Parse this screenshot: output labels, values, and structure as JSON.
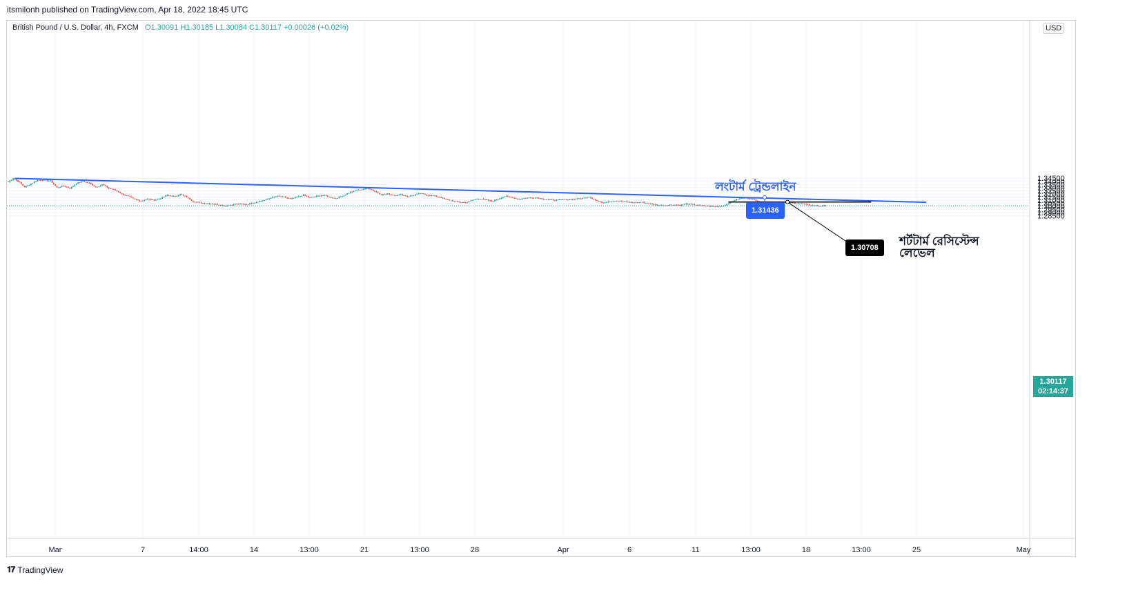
{
  "header": {
    "published": "itsmilonh published on TradingView.com, Apr 18, 2022 18:45 UTC"
  },
  "legend": {
    "symbol": "British Pound / U.S. Dollar, 4h, FXCM",
    "ohlc": "O1.30091  H1.30185  L1.30084  C1.30117  +0.00026 (+0.02%)"
  },
  "currency": "USD",
  "last_price": {
    "value": "1.30117",
    "countdown": "02:14:37",
    "color": "#26a69a"
  },
  "annotations": {
    "trendline_label": "লংটার্ম ট্রেন্ডলাইন",
    "trendline_touch_value": "1.31436",
    "resistance_value": "1.30708",
    "resistance_label": "শর্টটার্ম রেসিস্টেন্স লেভেল",
    "trendline_color": "#2962ff",
    "resistance_color": "#000000"
  },
  "footer": {
    "logo_icon": "tradingview-logo-icon",
    "brand": "TradingView"
  },
  "chart_data": {
    "type": "candlestick",
    "title": "British Pound / U.S. Dollar, 4h, FXCM",
    "ylim": [
      1.282,
      1.3465
    ],
    "y_ticks": [
      "1.28500",
      "1.29000",
      "1.29500",
      "1.30000",
      "1.30500",
      "1.31000",
      "1.31500",
      "1.32000",
      "1.32500",
      "1.33000",
      "1.33500",
      "1.34000",
      "1.34500"
    ],
    "x_ticks": [
      "Mar",
      "7",
      "14:00",
      "14",
      "13:00",
      "21",
      "13:00",
      "28",
      "Apr",
      "6",
      "11",
      "13:00",
      "18",
      "13:00",
      "25",
      "May"
    ],
    "up_color": "#26a69a",
    "down_color": "#ef5350",
    "grid": true,
    "close_path": [
      [
        0,
        1.339
      ],
      [
        3,
        1.345
      ],
      [
        7,
        1.338
      ],
      [
        10,
        1.331
      ],
      [
        14,
        1.336
      ],
      [
        18,
        1.342
      ],
      [
        22,
        1.342
      ],
      [
        26,
        1.341
      ],
      [
        30,
        1.33
      ],
      [
        34,
        1.333
      ],
      [
        38,
        1.329
      ],
      [
        42,
        1.337
      ],
      [
        46,
        1.34
      ],
      [
        50,
        1.337
      ],
      [
        54,
        1.331
      ],
      [
        58,
        1.335
      ],
      [
        62,
        1.329
      ],
      [
        66,
        1.326
      ],
      [
        70,
        1.32
      ],
      [
        74,
        1.316
      ],
      [
        78,
        1.311
      ],
      [
        82,
        1.309
      ],
      [
        86,
        1.312
      ],
      [
        90,
        1.31
      ],
      [
        94,
        1.313
      ],
      [
        98,
        1.318
      ],
      [
        102,
        1.316
      ],
      [
        106,
        1.319
      ],
      [
        110,
        1.315
      ],
      [
        114,
        1.308
      ],
      [
        118,
        1.306
      ],
      [
        122,
        1.305
      ],
      [
        126,
        1.304
      ],
      [
        130,
        1.303
      ],
      [
        134,
        1.301
      ],
      [
        138,
        1.303
      ],
      [
        142,
        1.304
      ],
      [
        146,
        1.303
      ],
      [
        150,
        1.305
      ],
      [
        154,
        1.308
      ],
      [
        158,
        1.31
      ],
      [
        162,
        1.314
      ],
      [
        166,
        1.316
      ],
      [
        170,
        1.315
      ],
      [
        174,
        1.312
      ],
      [
        178,
        1.315
      ],
      [
        182,
        1.318
      ],
      [
        186,
        1.314
      ],
      [
        190,
        1.316
      ],
      [
        194,
        1.318
      ],
      [
        198,
        1.315
      ],
      [
        202,
        1.313
      ],
      [
        206,
        1.317
      ],
      [
        210,
        1.322
      ],
      [
        214,
        1.325
      ],
      [
        218,
        1.327
      ],
      [
        222,
        1.329
      ],
      [
        226,
        1.324
      ],
      [
        230,
        1.319
      ],
      [
        234,
        1.32
      ],
      [
        238,
        1.318
      ],
      [
        242,
        1.319
      ],
      [
        246,
        1.316
      ],
      [
        250,
        1.318
      ],
      [
        254,
        1.321
      ],
      [
        258,
        1.318
      ],
      [
        262,
        1.317
      ],
      [
        266,
        1.315
      ],
      [
        270,
        1.311
      ],
      [
        274,
        1.309
      ],
      [
        278,
        1.307
      ],
      [
        282,
        1.306
      ],
      [
        286,
        1.31
      ],
      [
        290,
        1.313
      ],
      [
        294,
        1.311
      ],
      [
        298,
        1.308
      ],
      [
        302,
        1.312
      ],
      [
        306,
        1.316
      ],
      [
        310,
        1.315
      ],
      [
        314,
        1.312
      ],
      [
        318,
        1.313
      ],
      [
        322,
        1.314
      ],
      [
        326,
        1.314
      ],
      [
        330,
        1.312
      ],
      [
        334,
        1.311
      ],
      [
        338,
        1.31
      ],
      [
        342,
        1.311
      ],
      [
        346,
        1.311
      ],
      [
        350,
        1.312
      ],
      [
        354,
        1.313
      ],
      [
        358,
        1.316
      ],
      [
        362,
        1.31
      ],
      [
        366,
        1.306
      ],
      [
        370,
        1.308
      ],
      [
        374,
        1.309
      ],
      [
        378,
        1.308
      ],
      [
        382,
        1.307
      ],
      [
        386,
        1.306
      ],
      [
        390,
        1.307
      ],
      [
        394,
        1.305
      ],
      [
        398,
        1.303
      ],
      [
        402,
        1.302
      ],
      [
        406,
        1.302
      ],
      [
        410,
        1.303
      ],
      [
        414,
        1.302
      ],
      [
        418,
        1.304
      ],
      [
        422,
        1.303
      ],
      [
        426,
        1.302
      ],
      [
        430,
        1.301
      ],
      [
        434,
        1.3
      ],
      [
        438,
        1.3
      ],
      [
        442,
        1.302
      ],
      [
        446,
        1.308
      ],
      [
        450,
        1.312
      ],
      [
        454,
        1.314
      ],
      [
        458,
        1.312
      ],
      [
        462,
        1.309
      ],
      [
        466,
        1.306
      ],
      [
        470,
        1.307
      ],
      [
        474,
        1.306
      ],
      [
        478,
        1.306
      ],
      [
        482,
        1.306
      ],
      [
        486,
        1.305
      ],
      [
        490,
        1.304
      ],
      [
        494,
        1.302
      ],
      [
        498,
        1.301
      ],
      [
        502,
        1.301
      ],
      [
        504,
        1.3012
      ]
    ],
    "trendline": {
      "from": [
        4,
        1.3447
      ],
      "to": [
        566,
        1.3066
      ],
      "label": "লংটার্ম ট্রেন্ডলাইন",
      "touch_value": 1.31436
    },
    "resistance": {
      "value": 1.30708,
      "from": 444,
      "to": 532,
      "label": "শর্টটার্ম রেসিস্টেন্স লেভেল"
    },
    "last_close": 1.30117
  }
}
